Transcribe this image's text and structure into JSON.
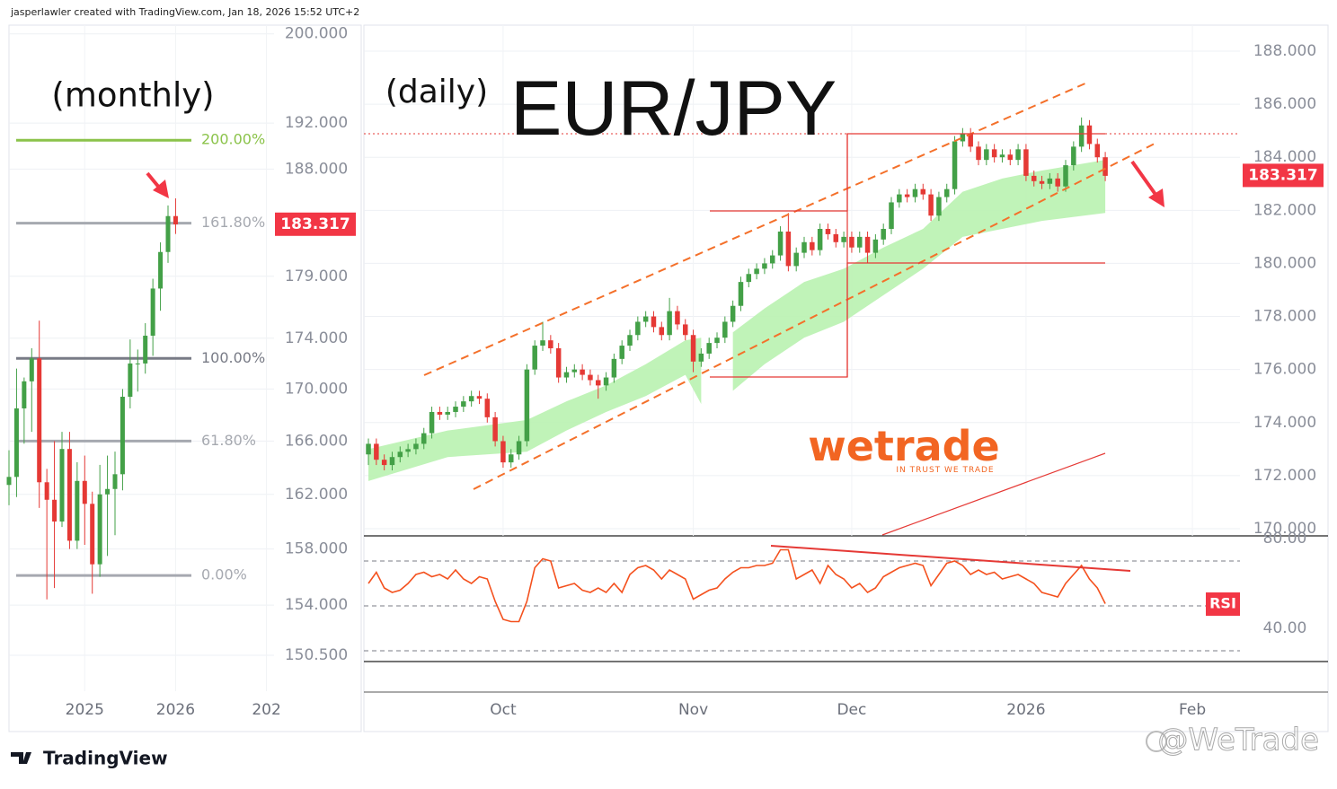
{
  "header": {
    "credit": "jasperlawler created with TradingView.com, Jan 18, 2026 15:52 UTC+2",
    "brand": "TradingView",
    "watermark": "@WeTrade"
  },
  "logo": {
    "name": "wetrade",
    "tagline": "IN TRUST WE TRADE"
  },
  "chart_data": [
    {
      "type": "candlestick",
      "title": "(monthly)",
      "open": [
        162.7,
        163.3,
        168.5,
        170.6,
        172.4,
        162.9,
        161.6,
        160.0,
        165.4,
        158.6,
        163.0,
        161.3,
        156.9,
        162.0,
        162.4,
        163.5,
        169.4,
        172.0,
        172.0,
        174.2,
        178.0,
        181.0,
        184.0
      ],
      "high": [
        165.3,
        171.6,
        170.9,
        173.2,
        175.4,
        163.9,
        166.0,
        166.7,
        166.7,
        164.4,
        164.9,
        162.2,
        164.2,
        164.9,
        165.2,
        170.0,
        173.9,
        173.1,
        175.2,
        178.8,
        181.8,
        184.9,
        185.5
      ],
      "low": [
        161.2,
        161.8,
        165.8,
        166.7,
        161.0,
        154.4,
        155.2,
        159.6,
        158.0,
        158.0,
        158.3,
        154.8,
        156.0,
        157.5,
        159.0,
        162.3,
        168.5,
        169.8,
        171.2,
        172.6,
        176.2,
        180.1,
        182.5
      ],
      "close": [
        163.3,
        168.5,
        170.6,
        172.4,
        162.9,
        161.6,
        160.0,
        165.4,
        158.6,
        163.0,
        161.3,
        156.9,
        162.0,
        162.4,
        163.5,
        169.4,
        172.0,
        172.0,
        174.2,
        178.0,
        181.0,
        184.0,
        183.3
      ],
      "up_color": "#43a047",
      "down_color": "#e53935",
      "xlim": [
        0,
        35
      ],
      "xticks": [
        {
          "value": 10,
          "label": "2025"
        },
        {
          "value": 22,
          "label": "2026"
        },
        {
          "value": 34,
          "label": "202"
        }
      ],
      "ylim": [
        148.05,
        200.8
      ],
      "log": true,
      "grid": true,
      "yticks": [
        {
          "value": 200,
          "label": "200.000"
        },
        {
          "value": 192,
          "label": "192.000"
        },
        {
          "value": 188,
          "label": "188.000"
        },
        {
          "value": 179,
          "label": "179.000"
        },
        {
          "value": 174,
          "label": "174.000"
        },
        {
          "value": 170,
          "label": "170.000"
        },
        {
          "value": 166,
          "label": "166.000"
        },
        {
          "value": 162,
          "label": "162.000"
        },
        {
          "value": 158,
          "label": "158.000"
        },
        {
          "value": 154,
          "label": "154.000"
        },
        {
          "value": 150.5,
          "label": "150.500"
        }
      ],
      "levels": [
        {
          "value": 190.5,
          "label": "200.00%",
          "color": "#8bc34a"
        },
        {
          "value": 183.4,
          "label": "161.80%",
          "color": "#a6a9b0"
        },
        {
          "value": 172.4,
          "label": "100.00%",
          "color": "#787b86"
        },
        {
          "value": 166.0,
          "label": "61.80%",
          "color": "#a6a9b0"
        },
        {
          "value": 156.1,
          "label": "0.00%",
          "color": "#a6a9b0"
        }
      ],
      "last_price": 183.317
    },
    {
      "type": "candlestick",
      "title": "EUR/JPY",
      "subtitle": "(daily)",
      "open": [
        172.8,
        173.2,
        172.6,
        172.4,
        172.7,
        172.9,
        173.0,
        173.2,
        173.6,
        174.4,
        174.3,
        174.4,
        174.6,
        174.8,
        175.0,
        174.9,
        174.2,
        173.3,
        172.5,
        172.8,
        173.3,
        176.0,
        176.9,
        177.1,
        176.8,
        175.7,
        175.9,
        176.0,
        175.8,
        175.6,
        175.4,
        175.7,
        176.4,
        176.9,
        177.3,
        177.8,
        178.0,
        177.6,
        177.3,
        178.2,
        177.7,
        177.3,
        176.3,
        176.6,
        177.0,
        177.2,
        177.8,
        178.4,
        179.3,
        179.6,
        179.8,
        180.0,
        180.3,
        181.2,
        179.9,
        180.4,
        180.8,
        180.5,
        181.3,
        181.1,
        180.8,
        181.0,
        180.6,
        181.0,
        180.4,
        180.9,
        181.3,
        182.3,
        182.6,
        182.5,
        182.8,
        182.6,
        181.8,
        182.5,
        182.8,
        184.6,
        184.9,
        184.4,
        183.9,
        184.3,
        184.0,
        184.1,
        183.9,
        184.3,
        183.3,
        183.1,
        183.0,
        183.2,
        182.9,
        183.7,
        184.4,
        185.2,
        184.5,
        184.0
      ],
      "high": [
        173.4,
        173.4,
        172.8,
        172.9,
        173.1,
        173.2,
        173.4,
        173.8,
        174.6,
        174.6,
        174.6,
        174.8,
        175.0,
        175.2,
        175.2,
        175.1,
        174.4,
        173.5,
        173.0,
        173.5,
        176.2,
        177.1,
        177.8,
        177.3,
        177.0,
        176.1,
        176.2,
        176.2,
        176.0,
        175.8,
        175.9,
        176.6,
        177.1,
        177.5,
        178.0,
        178.2,
        178.2,
        177.8,
        178.7,
        178.4,
        177.9,
        177.5,
        176.8,
        177.2,
        177.4,
        178.0,
        178.6,
        179.5,
        179.8,
        180.0,
        180.2,
        180.5,
        181.4,
        181.9,
        180.6,
        181.0,
        181.0,
        181.5,
        181.5,
        181.3,
        181.2,
        181.2,
        181.2,
        181.2,
        181.1,
        181.5,
        182.5,
        182.8,
        182.8,
        183.0,
        183.0,
        182.8,
        182.7,
        183.0,
        184.8,
        185.1,
        185.1,
        184.6,
        184.5,
        184.5,
        184.3,
        184.3,
        184.5,
        184.5,
        183.5,
        183.3,
        183.4,
        183.4,
        183.9,
        184.6,
        185.5,
        185.4,
        184.7,
        184.2
      ],
      "low": [
        172.4,
        172.4,
        172.2,
        172.2,
        172.5,
        172.7,
        172.8,
        173.0,
        173.4,
        174.1,
        174.1,
        174.2,
        174.4,
        174.6,
        174.7,
        174.0,
        173.1,
        172.3,
        172.3,
        172.6,
        173.1,
        175.8,
        176.7,
        176.6,
        175.5,
        175.5,
        175.7,
        175.6,
        175.4,
        174.9,
        175.2,
        175.5,
        176.2,
        176.7,
        177.1,
        177.6,
        177.4,
        177.1,
        177.1,
        177.5,
        177.1,
        175.9,
        176.1,
        176.4,
        176.8,
        177.0,
        177.6,
        178.2,
        179.1,
        179.4,
        179.6,
        179.8,
        180.1,
        179.7,
        179.7,
        180.2,
        180.3,
        180.3,
        180.9,
        180.6,
        180.6,
        180.4,
        180.4,
        180.0,
        180.2,
        180.7,
        181.1,
        182.1,
        182.3,
        182.3,
        182.4,
        181.6,
        181.6,
        182.3,
        182.6,
        184.4,
        184.2,
        183.7,
        183.7,
        183.8,
        183.8,
        183.7,
        183.7,
        183.1,
        182.9,
        182.8,
        182.8,
        182.7,
        182.7,
        183.5,
        184.2,
        184.3,
        183.8,
        183.1
      ],
      "close": [
        173.2,
        172.6,
        172.4,
        172.7,
        172.9,
        173.0,
        173.2,
        173.6,
        174.4,
        174.3,
        174.4,
        174.6,
        174.8,
        175.0,
        174.9,
        174.2,
        173.3,
        172.5,
        172.8,
        173.3,
        176.0,
        176.9,
        177.1,
        176.8,
        175.7,
        175.9,
        176.0,
        175.8,
        175.6,
        175.4,
        175.7,
        176.4,
        176.9,
        177.3,
        177.8,
        178.0,
        177.6,
        177.3,
        178.2,
        177.7,
        177.3,
        176.3,
        176.6,
        177.0,
        177.2,
        177.8,
        178.4,
        179.3,
        179.6,
        179.8,
        180.0,
        180.3,
        181.2,
        179.9,
        180.4,
        180.8,
        180.5,
        181.3,
        181.1,
        180.8,
        181.0,
        180.6,
        181.0,
        180.4,
        180.9,
        181.3,
        182.3,
        182.6,
        182.5,
        182.8,
        182.6,
        181.8,
        182.5,
        182.8,
        184.6,
        184.9,
        184.4,
        183.9,
        184.3,
        184.0,
        184.1,
        183.9,
        184.3,
        183.3,
        183.1,
        183.0,
        183.2,
        182.9,
        183.7,
        184.4,
        185.2,
        184.5,
        184.0,
        183.3
      ],
      "up_color": "#43a047",
      "down_color": "#e53935",
      "ribbon": {
        "x": [
          0,
          10,
          20,
          25,
          30,
          35,
          40,
          42,
          43,
          46,
          50,
          55,
          60,
          65,
          70,
          75,
          80,
          85,
          93
        ],
        "upper": [
          173.0,
          173.7,
          174.1,
          174.8,
          175.4,
          176.2,
          177.1,
          177.2,
          null,
          177.4,
          178.3,
          179.3,
          179.8,
          180.6,
          181.3,
          182.7,
          183.2,
          183.5,
          183.9
        ],
        "lower": [
          171.8,
          172.7,
          172.9,
          173.7,
          174.4,
          175.0,
          175.8,
          174.7,
          null,
          175.2,
          176.2,
          177.2,
          177.8,
          178.8,
          179.8,
          181.0,
          181.3,
          181.6,
          181.9
        ],
        "color": "#b9f2b0"
      },
      "xlim": [
        -0.57,
        110
      ],
      "xticks": [
        {
          "value": 17,
          "label": "Oct"
        },
        {
          "value": 41,
          "label": "Nov"
        },
        {
          "value": 61,
          "label": "Dec"
        },
        {
          "value": 83,
          "label": "2026"
        },
        {
          "value": 104,
          "label": "Feb"
        }
      ],
      "ylim": [
        169.73,
        188.98
      ],
      "grid": true,
      "yticks": [
        {
          "value": 170,
          "label": "170.000"
        },
        {
          "value": 172,
          "label": "172.000"
        },
        {
          "value": 174,
          "label": "174.000"
        },
        {
          "value": 176,
          "label": "176.000"
        },
        {
          "value": 178,
          "label": "178.000"
        },
        {
          "value": 180,
          "label": "180.000"
        },
        {
          "value": 182,
          "label": "182.000"
        },
        {
          "value": 184,
          "label": "184.000"
        },
        {
          "value": 186,
          "label": "186.000"
        },
        {
          "value": 188,
          "label": "188.000"
        }
      ],
      "last_price": 183.317
    },
    {
      "type": "line",
      "title": "RSI",
      "values": [
        60,
        65,
        58,
        56,
        57,
        60,
        64,
        65,
        63,
        64,
        62,
        66,
        62,
        60,
        63,
        62,
        52,
        44,
        43,
        43,
        52,
        67,
        71,
        70,
        58,
        59,
        60,
        57,
        56,
        58,
        56,
        60,
        56,
        64,
        67,
        68,
        66,
        62,
        66,
        64,
        62,
        53,
        55,
        57,
        58,
        62,
        65,
        67,
        67,
        68,
        68,
        69,
        75,
        75,
        62,
        64,
        66,
        60,
        68,
        64,
        62,
        58,
        60,
        56,
        58,
        63,
        65,
        67,
        68,
        69,
        68,
        59,
        64,
        69,
        70,
        68,
        64,
        66,
        64,
        65,
        62,
        63,
        64,
        62,
        60,
        56,
        55,
        54,
        60,
        64,
        68,
        62,
        58,
        51
      ],
      "color": "#f4511e",
      "xlim": [
        -0.57,
        110
      ],
      "ylim": [
        25.2,
        81.2
      ],
      "yticks": [
        {
          "value": 80,
          "label": "80.00"
        },
        {
          "value": 40,
          "label": "40.00"
        }
      ],
      "bands": [
        70,
        50,
        30
      ]
    }
  ]
}
